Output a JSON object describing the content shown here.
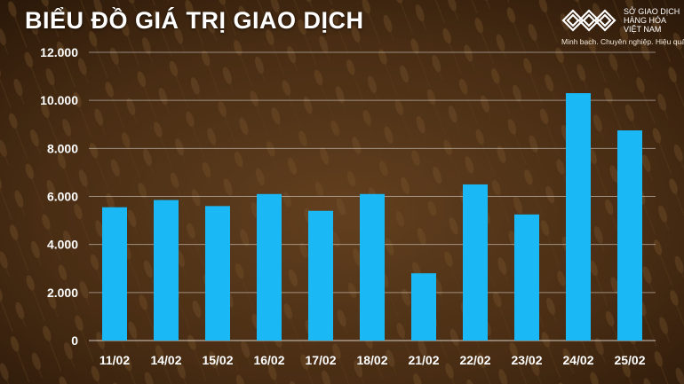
{
  "title": "BIỂU ĐỒ GIÁ TRỊ GIAO DỊCH",
  "logo": {
    "icon": "vietnam-commodity-exchange-logo",
    "name_line1": "SỞ GIAO DỊCH",
    "name_line2": "HÀNG HÓA",
    "name_line3": "VIỆT NAM",
    "slogan": "Minh bạch. Chuyên nghiệp. Hiệu quả"
  },
  "colors": {
    "bar": "#1ab8f5",
    "text": "#ffffff",
    "grid": "#ffffff"
  },
  "chart_data": {
    "type": "bar",
    "title": "BIỂU ĐỒ GIÁ TRỊ GIAO DỊCH",
    "categories": [
      "11/02",
      "14/02",
      "15/02",
      "16/02",
      "17/02",
      "18/02",
      "21/02",
      "22/02",
      "23/02",
      "24/02",
      "25/02"
    ],
    "values": [
      5550,
      5850,
      5600,
      6100,
      5400,
      6100,
      2800,
      6500,
      5250,
      10300,
      8750
    ],
    "ylim": [
      0,
      12000
    ],
    "yticks": [
      "0",
      "2.000",
      "4.000",
      "6.000",
      "8.000",
      "10.000",
      "12.000"
    ],
    "grid": true,
    "legend": "none",
    "xlabel": "",
    "ylabel": ""
  }
}
